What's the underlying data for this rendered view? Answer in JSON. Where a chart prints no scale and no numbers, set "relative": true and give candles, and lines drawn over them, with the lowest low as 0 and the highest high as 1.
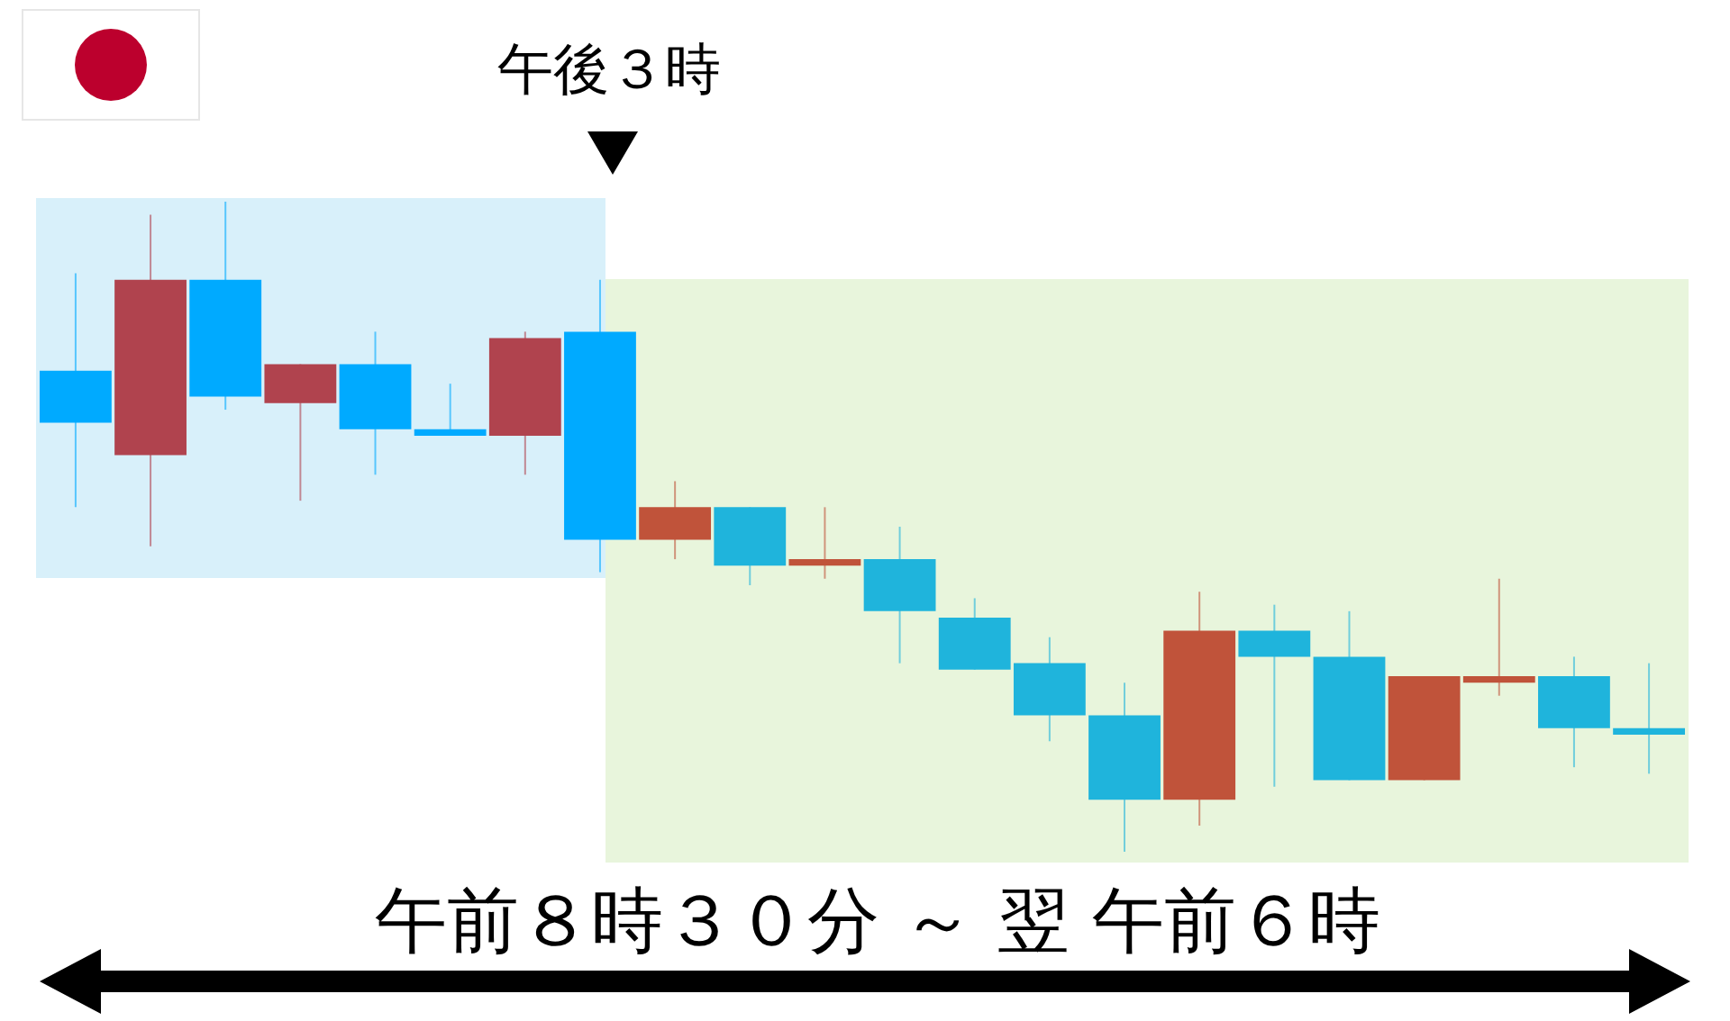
{
  "chart_data": {
    "type": "candlestick",
    "relative": true,
    "categories": [
      null,
      null,
      null,
      null,
      null,
      null,
      null,
      null,
      null,
      null,
      null,
      null,
      null,
      null,
      null,
      null,
      null,
      null,
      null,
      null,
      null,
      null
    ],
    "ohlc": [
      [
        0.74,
        0.89,
        0.53,
        0.66
      ],
      [
        0.61,
        0.98,
        0.47,
        0.88
      ],
      [
        0.88,
        1.0,
        0.68,
        0.7
      ],
      [
        0.69,
        0.75,
        0.54,
        0.75
      ],
      [
        0.75,
        0.8,
        0.58,
        0.65
      ],
      [
        0.65,
        0.72,
        0.64,
        0.64
      ],
      [
        0.64,
        0.8,
        0.58,
        0.79
      ],
      [
        0.8,
        0.88,
        0.43,
        0.48
      ],
      [
        0.48,
        0.57,
        0.45,
        0.53
      ],
      [
        0.53,
        0.53,
        0.41,
        0.44
      ],
      [
        0.44,
        0.53,
        0.42,
        0.45
      ],
      [
        0.45,
        0.5,
        0.29,
        0.37
      ],
      [
        0.36,
        0.39,
        0.28,
        0.28
      ],
      [
        0.29,
        0.33,
        0.17,
        0.21
      ],
      [
        0.21,
        0.26,
        0.0,
        0.08
      ],
      [
        0.08,
        0.4,
        0.04,
        0.34
      ],
      [
        0.34,
        0.38,
        0.1,
        0.3
      ],
      [
        0.3,
        0.37,
        0.11,
        0.11
      ],
      [
        0.11,
        0.27,
        0.11,
        0.27
      ],
      [
        0.26,
        0.42,
        0.24,
        0.27
      ],
      [
        0.27,
        0.3,
        0.13,
        0.19
      ],
      [
        0.19,
        0.29,
        0.12,
        0.18
      ]
    ],
    "colors": [
      "#00aaff",
      "#b0434e",
      "#00aaff",
      "#b0434e",
      "#00aaff",
      "#00aaff",
      "#b0434e",
      "#00aaff",
      "#c0533a",
      "#1fb4dc",
      "#c0533a",
      "#1fb4dc",
      "#1fb4dc",
      "#1fb4dc",
      "#1fb4dc",
      "#c0533a",
      "#1fb4dc",
      "#1fb4dc",
      "#c0533a",
      "#c0533a",
      "#1fb4dc",
      "#1fb4dc"
    ],
    "annotations": [
      "午後３時",
      "午前８時３０分 ～ 翌 午前６時"
    ]
  }
}
